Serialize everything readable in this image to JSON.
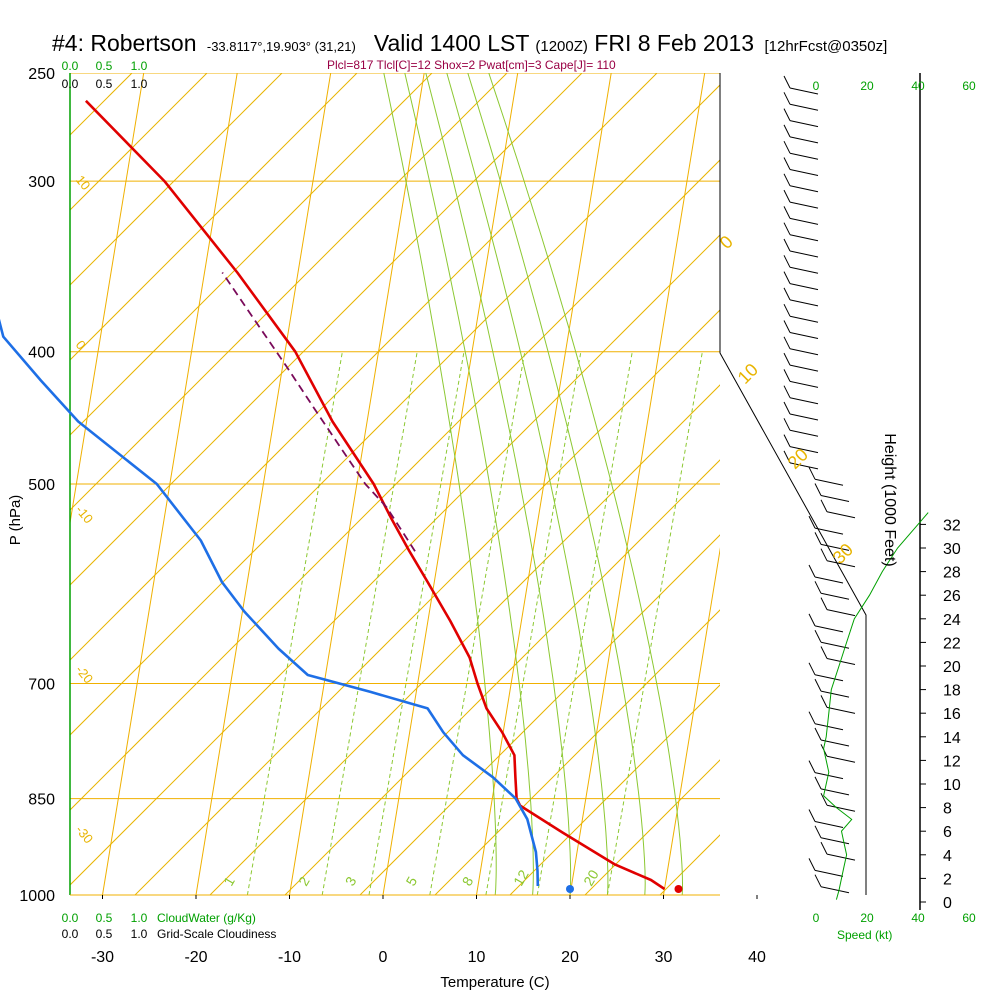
{
  "header": {
    "station": "#4: Robertson",
    "coords": "-33.8117°,19.903° (31,21)",
    "valid": "Valid 1400 LST",
    "zulu": "(1200Z)",
    "date": "FRI 8 Feb 2013",
    "forecast": "[12hrFcst@0350z]",
    "params": "Plcl=817 Tlcl[C]=12 Shox=2 Pwat[cm]=3 Cape[J]= 110"
  },
  "colors": {
    "isotherm": "#f0b000",
    "dry_adiabat": "#e8b400",
    "moist_adiabat": "#8cc832",
    "mixing_ratio": "#8cc832",
    "temperature": "#e00000",
    "dewpoint": "#1e6fe6",
    "parcel": "#7a0a5a",
    "cloud_scale": "#00a000",
    "height_scale": "#000000"
  },
  "scales": {
    "cloudwater_ticks": [
      "0.0",
      "0.5",
      "1.0"
    ],
    "cloudiness_ticks": [
      "0.0",
      "0.5",
      "1.0"
    ],
    "cloudwater_label": "CloudWater (g/Kg)",
    "cloudiness_label": "Grid-Scale Cloudiness",
    "speed_ticks": [
      "0",
      "20",
      "40",
      "60"
    ],
    "speed_label": "Speed (kt)",
    "height_ticks": [
      "0",
      "2",
      "4",
      "6",
      "8",
      "10",
      "12",
      "14",
      "16",
      "18",
      "20",
      "22",
      "24",
      "26",
      "28",
      "30",
      "32"
    ],
    "height_label": "Height (1000 Feet)",
    "mixing_ratio_labels": [
      "1",
      "2",
      "3",
      "5",
      "8",
      "12",
      "20"
    ],
    "dry_adiabat_labels_left": [
      "10",
      "0",
      "-10",
      "-20",
      "-30"
    ],
    "dry_adiabat_labels_right": [
      "0",
      "10",
      "20",
      "30"
    ]
  },
  "chart_data": {
    "type": "line",
    "title": "",
    "xlabel": "Temperature (C)",
    "ylabel": "P (hPa)",
    "xlim": [
      -34,
      46
    ],
    "ylim": [
      1000,
      250
    ],
    "x_scale": "skew-T (isotherms skewed)",
    "y_scale": "log",
    "x_ticks": [
      "-30",
      "-20",
      "-10",
      "0",
      "10",
      "20",
      "30",
      "40"
    ],
    "y_ticks": [
      "250",
      "300",
      "400",
      "500",
      "700",
      "850",
      "1000"
    ],
    "series": [
      {
        "name": "",
        "kind": "temperature",
        "pressure": [
          990,
          975,
          950,
          900,
          860,
          850,
          820,
          790,
          760,
          730,
          700,
          670,
          630,
          590,
          560,
          530,
          500,
          450,
          400,
          350,
          300,
          262
        ],
        "temperature": [
          30.0,
          28.4,
          24.3,
          18.1,
          13.1,
          12.6,
          12.1,
          11.6,
          9.9,
          7.8,
          6.4,
          5.1,
          2.4,
          -0.7,
          -3.2,
          -5.7,
          -8.2,
          -13.7,
          -18.9,
          -26.5,
          -35.9,
          -45.7
        ]
      },
      {
        "name": "",
        "kind": "dewpoint",
        "pressure": [
          985,
          960,
          930,
          880,
          850,
          820,
          790,
          760,
          730,
          710,
          690,
          660,
          620,
          590,
          550,
          500,
          450,
          420,
          390,
          350,
          300,
          270,
          262
        ],
        "dewpoint": [
          16.4,
          16.1,
          15.6,
          14.1,
          12.5,
          9.7,
          6.1,
          3.6,
          1.5,
          -4.9,
          -11.9,
          -15.5,
          -19.8,
          -22.7,
          -25.7,
          -31.4,
          -40.9,
          -45.6,
          -50.4,
          -53.3,
          -58.2,
          -63.8,
          -64.2
        ]
      },
      {
        "name": "",
        "kind": "parcel",
        "pressure": [
          560,
          520,
          500,
          470,
          440,
          410,
          380,
          350
        ],
        "temperature": [
          -2.6,
          -6.4,
          -9.1,
          -12.4,
          -15.9,
          -19.6,
          -23.7,
          -28.1
        ]
      }
    ],
    "surface_points": [
      {
        "kind": "temperature",
        "pressure": 990,
        "value": 31.5
      },
      {
        "kind": "dewpoint",
        "pressure": 990,
        "value": 19.9
      }
    ],
    "wind_speed_profile": {
      "xlabel": "Speed (kt)",
      "xlim": [
        0,
        60
      ],
      "height_kft": [
        0.2,
        1,
        2,
        3,
        4,
        5,
        6,
        7,
        8,
        9,
        10,
        11,
        12,
        13,
        14,
        16,
        18,
        20,
        22,
        24,
        26,
        28,
        30,
        32,
        33
      ],
      "speed": [
        8,
        9,
        10,
        11,
        12,
        11,
        10,
        14,
        8,
        3,
        4,
        5,
        4,
        3,
        4,
        5,
        6,
        9,
        12,
        15,
        21,
        26,
        32,
        40,
        44
      ]
    }
  }
}
